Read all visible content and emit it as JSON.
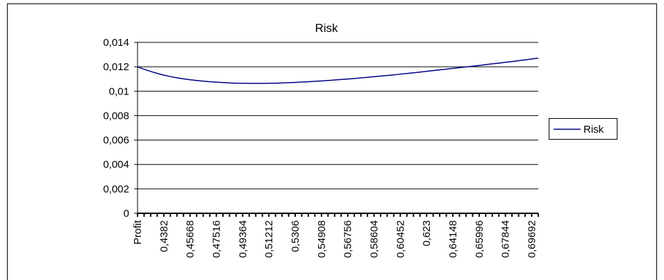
{
  "chart_data": {
    "type": "line",
    "title": "Risk",
    "categories": [
      "Profit",
      null,
      null,
      null,
      "0,4382",
      null,
      null,
      null,
      "0,45668",
      null,
      null,
      null,
      "0,47516",
      null,
      null,
      null,
      "0,49364",
      null,
      null,
      null,
      "0,51212",
      null,
      null,
      null,
      "0,5306",
      null,
      null,
      null,
      "0,54908",
      null,
      null,
      null,
      "0,56756",
      null,
      null,
      null,
      "0,58604",
      null,
      null,
      null,
      "0,60452",
      null,
      null,
      null,
      "0,623",
      null,
      null,
      null,
      "0,64148",
      null,
      null,
      null,
      "0,65996",
      null,
      null,
      null,
      "0,67844",
      null,
      null,
      null,
      "0,69692",
      null
    ],
    "series": [
      {
        "name": "Risk",
        "color": "#000080",
        "values": [
          0.012,
          0.0118,
          0.01162,
          0.01146,
          0.01132,
          0.0112,
          0.0111,
          0.01101,
          0.01094,
          0.01088,
          0.01083,
          0.01078,
          0.01074,
          0.01071,
          0.01068,
          0.01066,
          0.01065,
          0.01064,
          0.01064,
          0.01064,
          0.01065,
          0.01066,
          0.01068,
          0.0107,
          0.01072,
          0.01075,
          0.01078,
          0.01081,
          0.01084,
          0.01088,
          0.01092,
          0.01096,
          0.011,
          0.01104,
          0.01109,
          0.01114,
          0.01119,
          0.01124,
          0.01129,
          0.01134,
          0.0114,
          0.01145,
          0.01151,
          0.01157,
          0.01163,
          0.01169,
          0.01175,
          0.01181,
          0.01187,
          0.01193,
          0.01199,
          0.01205,
          0.01211,
          0.01218,
          0.01224,
          0.0123,
          0.01237,
          0.01243,
          0.0125,
          0.01257,
          0.01264,
          0.01271
        ]
      }
    ],
    "ylim": [
      0,
      0.014
    ],
    "yticks": [
      0,
      {
        "value": 0.002,
        "label": "0,002"
      },
      {
        "value": 0.004,
        "label": "0,004"
      },
      {
        "value": 0.006,
        "label": "0,006"
      },
      {
        "value": 0.008,
        "label": "0,008"
      },
      {
        "value": 0.01,
        "label": "0,01"
      },
      {
        "value": 0.012,
        "label": "0,012"
      },
      {
        "value": 0.014,
        "label": "0,014"
      }
    ],
    "grid": true,
    "legend": "right"
  }
}
